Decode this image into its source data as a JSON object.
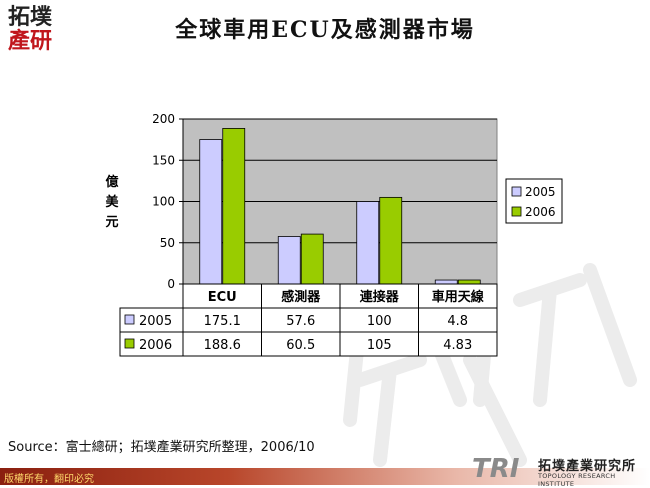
{
  "logo": {
    "top": "拓墣",
    "bottom": "產研"
  },
  "title": "全球車用ECU及感測器市場",
  "chart_data": {
    "type": "bar",
    "categories": [
      "ECU",
      "感測器",
      "連接器",
      "車用天線"
    ],
    "series": [
      {
        "name": "2005",
        "values": [
          175.1,
          57.6,
          100,
          4.8
        ],
        "color": "#ccccff"
      },
      {
        "name": "2006",
        "values": [
          188.6,
          60.5,
          105,
          4.83
        ],
        "color": "#99cc00"
      }
    ],
    "value_labels": {
      "2005": [
        "175.1",
        "57.6",
        "100",
        "4.8"
      ],
      "2006": [
        "188.6",
        "60.5",
        "105",
        "4.83"
      ]
    },
    "ylabel": "億美元",
    "ylim": [
      0,
      200
    ],
    "yticks": [
      0,
      50,
      100,
      150,
      200
    ],
    "grid": true,
    "legend": "right",
    "plot_bg": "#c0c0c0",
    "data_table": true
  },
  "source": "Source：富士總研；拓墣產業研究所整理，2006/10",
  "footer": {
    "copyright": "版權所有，翻印必究",
    "brand_mark": "TRI",
    "brand_name": "拓墣產業研究所",
    "brand_sub": "TOPOLOGY RESEARCH INSTITUTE"
  }
}
